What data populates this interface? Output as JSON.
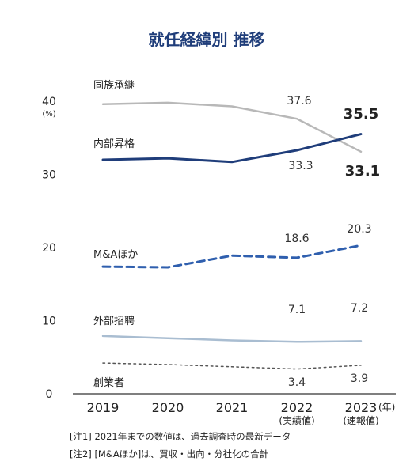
{
  "chart_data": {
    "type": "line",
    "title": "就任経緯別 推移",
    "y_unit": "(%)",
    "x_unit": "(年)",
    "x": [
      "2019",
      "2020",
      "2021",
      "2022",
      "2023"
    ],
    "x_sublabels": [
      "",
      "",
      "",
      "(実績値)",
      "(速報値)"
    ],
    "ylim": [
      0,
      40
    ],
    "yticks": [
      "0",
      "10",
      "20",
      "30",
      "40"
    ],
    "grid": false,
    "series": [
      {
        "name": "同族承継",
        "values": [
          39.6,
          39.8,
          39.3,
          37.6,
          33.1
        ],
        "color": "#b8b8b8",
        "dashed": false,
        "width": 2.5
      },
      {
        "name": "内部昇格",
        "values": [
          32.0,
          32.2,
          31.7,
          33.3,
          35.5
        ],
        "color": "#1f3d7a",
        "dashed": false,
        "width": 3
      },
      {
        "name": "M&Aほか",
        "values": [
          17.4,
          17.3,
          18.9,
          18.6,
          20.3
        ],
        "color": "#2f5fae",
        "dashed": true,
        "width": 3
      },
      {
        "name": "外部招聘",
        "values": [
          7.9,
          7.6,
          7.3,
          7.1,
          7.2
        ],
        "color": "#a9bdd1",
        "dashed": false,
        "width": 2.5
      },
      {
        "name": "創業者",
        "values": [
          4.2,
          4.0,
          3.7,
          3.4,
          3.9
        ],
        "color": "#555555",
        "dashed": true,
        "width": 1.5
      }
    ],
    "annotations": [
      {
        "series": 0,
        "index": 3,
        "text": "37.6",
        "bold": false
      },
      {
        "series": 0,
        "index": 4,
        "text": "33.1",
        "bold": true
      },
      {
        "series": 1,
        "index": 3,
        "text": "33.3",
        "bold": false
      },
      {
        "series": 1,
        "index": 4,
        "text": "35.5",
        "bold": true
      },
      {
        "series": 2,
        "index": 3,
        "text": "18.6",
        "bold": false
      },
      {
        "series": 2,
        "index": 4,
        "text": "20.3",
        "bold": false
      },
      {
        "series": 3,
        "index": 3,
        "text": "7.1",
        "bold": false
      },
      {
        "series": 3,
        "index": 4,
        "text": "7.2",
        "bold": false
      },
      {
        "series": 4,
        "index": 3,
        "text": "3.4",
        "bold": false
      },
      {
        "series": 4,
        "index": 4,
        "text": "3.9",
        "bold": false
      }
    ]
  },
  "notes": [
    "[注1] 2021年までの数値は、過去調査時の最新データ",
    "[注2] [M&Aほか]は、買収・出向・分社化の合計"
  ]
}
